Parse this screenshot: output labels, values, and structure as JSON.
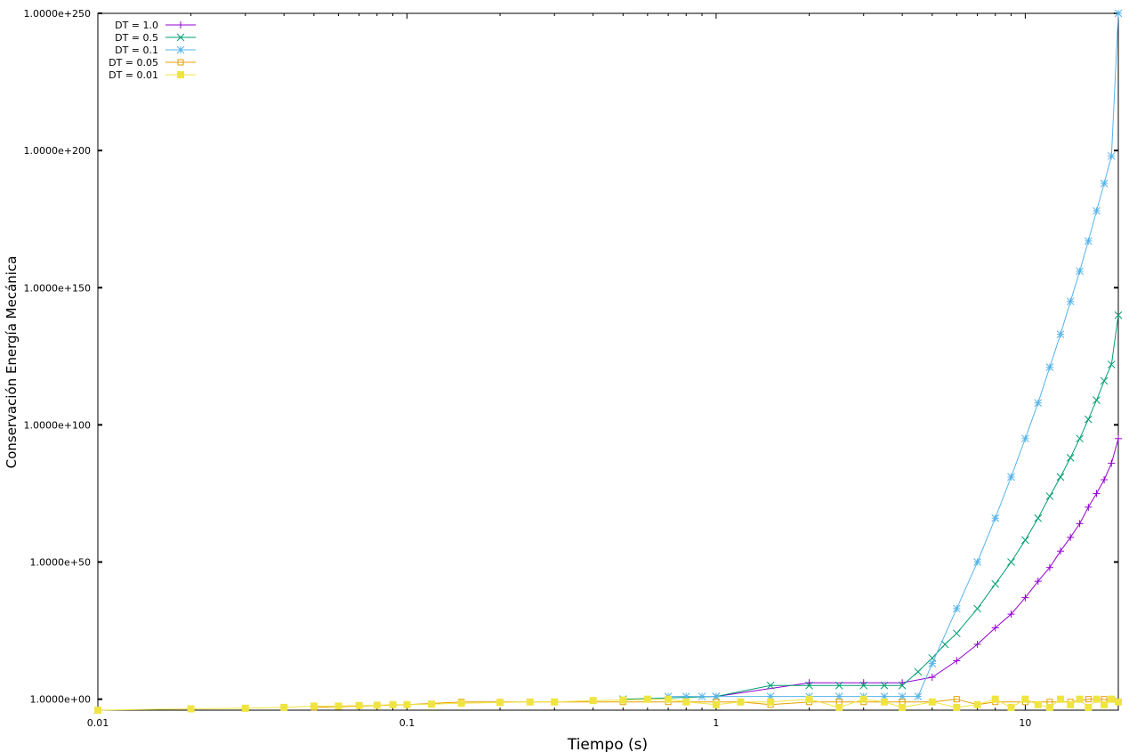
{
  "chart_data": {
    "type": "line",
    "title": "",
    "xlabel": "Tiempo (s)",
    "ylabel": "Conservación Energía Mecánica",
    "xscale": "log",
    "yscale": "log",
    "xlim": [
      0.01,
      20
    ],
    "ylim_log10": [
      -4,
      250
    ],
    "x_ticks": [
      {
        "value": 0.01,
        "label": "0.01"
      },
      {
        "value": 0.1,
        "label": "0.1"
      },
      {
        "value": 1,
        "label": "1"
      },
      {
        "value": 10,
        "label": "10"
      }
    ],
    "y_ticks": [
      {
        "log10": 0,
        "label": "1.0000e+00"
      },
      {
        "log10": 50,
        "label": "1.0000e+50"
      },
      {
        "log10": 100,
        "label": "1.0000e+100"
      },
      {
        "log10": 150,
        "label": "1.0000e+150"
      },
      {
        "log10": 200,
        "label": "1.0000e+200"
      },
      {
        "log10": 250,
        "label": "1.0000e+250"
      }
    ],
    "grid": false,
    "legend_position": "top-left",
    "series": [
      {
        "name": "DT = 1.0",
        "color": "#9400d3",
        "marker": "plus",
        "x": [
          1,
          2,
          3,
          4,
          5,
          6,
          7,
          8,
          9,
          10,
          11,
          12,
          13,
          14,
          15,
          16,
          17,
          18,
          19,
          20
        ],
        "y_log10": [
          1,
          6,
          6,
          6,
          8,
          14,
          20,
          26,
          31,
          37,
          43,
          48,
          54,
          59,
          64,
          70,
          75,
          80,
          86,
          95
        ]
      },
      {
        "name": "DT = 0.5",
        "color": "#009e73",
        "marker": "x",
        "x": [
          0.5,
          1,
          1.5,
          2,
          2.5,
          3,
          3.5,
          4,
          4.5,
          5,
          5.5,
          6,
          7,
          8,
          9,
          10,
          11,
          12,
          13,
          14,
          15,
          16,
          17,
          18,
          19,
          20
        ],
        "y_log10": [
          0,
          1,
          5,
          5,
          5,
          5,
          5,
          5,
          10,
          15,
          20,
          24,
          33,
          42,
          50,
          58,
          66,
          74,
          81,
          88,
          95,
          102,
          109,
          116,
          122,
          140
        ]
      },
      {
        "name": "DT = 0.1",
        "color": "#56b4e9",
        "marker": "star",
        "x": [
          0.7,
          0.8,
          0.9,
          1,
          1.5,
          2,
          2.5,
          3,
          3.5,
          4,
          4.5,
          5,
          6,
          7,
          8,
          9,
          10,
          11,
          12,
          13,
          14,
          15,
          16,
          17,
          18,
          19,
          20
        ],
        "y_log10": [
          1,
          1,
          1,
          1,
          1,
          1,
          1,
          1,
          1,
          1,
          1,
          13,
          33,
          50,
          66,
          81,
          95,
          108,
          121,
          133,
          145,
          156,
          167,
          178,
          188,
          198,
          250
        ]
      },
      {
        "name": "DT = 0.05",
        "color": "#e69f00",
        "marker": "open-square",
        "x": [
          0.05,
          0.1,
          0.15,
          0.2,
          0.3,
          0.5,
          0.7,
          1,
          1.2,
          1.5,
          2,
          2.5,
          3,
          4,
          5,
          6,
          7,
          8,
          10,
          12,
          14,
          16,
          18,
          20
        ],
        "y_log10": [
          -3,
          -2,
          -1,
          -1,
          -1,
          -1,
          -1,
          -1,
          -1,
          -2,
          -1,
          -1,
          -1,
          -1,
          -1,
          0,
          -2,
          -1,
          -1,
          -1,
          -1,
          0,
          0,
          -1
        ]
      },
      {
        "name": "DT = 0.01",
        "color": "#f0e442",
        "marker": "filled-square",
        "x": [
          0.01,
          0.02,
          0.03,
          0.04,
          0.05,
          0.06,
          0.07,
          0.08,
          0.09,
          0.1,
          0.12,
          0.15,
          0.2,
          0.25,
          0.3,
          0.4,
          0.5,
          0.6,
          0.7,
          0.8,
          1,
          1.2,
          1.5,
          2,
          2.5,
          3,
          3.5,
          4,
          5,
          6,
          7,
          8,
          9,
          10,
          11,
          12,
          13,
          14,
          15,
          16,
          17,
          18,
          19,
          20
        ],
        "y_log10": [
          -4,
          -3.5,
          -3.3,
          -3,
          -2.5,
          -2.5,
          -2.3,
          -2.2,
          -2,
          -2,
          -1.8,
          -1.5,
          -1.2,
          -1,
          -1,
          -0.5,
          -0.3,
          0,
          0,
          -1,
          -2,
          -1,
          -1,
          0,
          -3,
          0,
          -1,
          -3,
          -1,
          -3,
          -2,
          0,
          -3,
          0,
          -2,
          -3,
          0,
          -2,
          0,
          -3,
          0,
          -2,
          0,
          -1
        ]
      }
    ]
  }
}
